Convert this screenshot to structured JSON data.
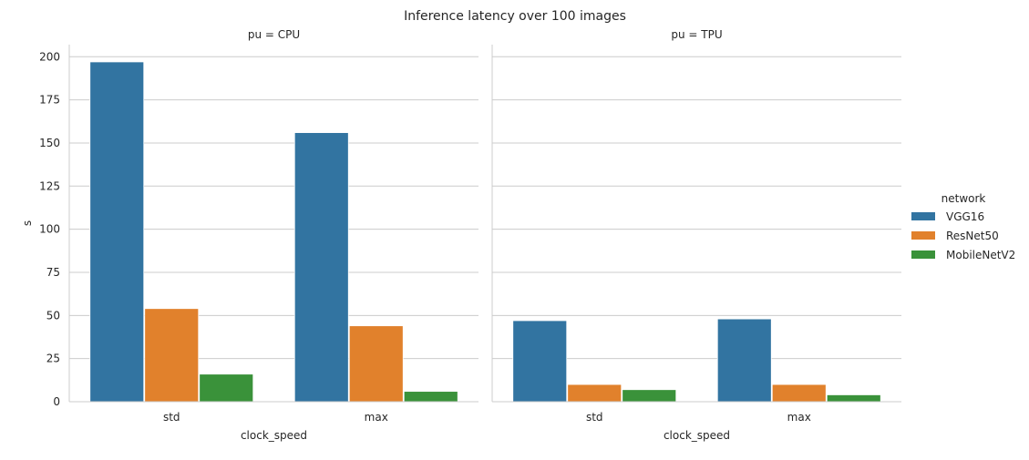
{
  "chart_data": {
    "type": "bar",
    "title": "Inference latency over 100 images",
    "xlabel": "clock_speed",
    "ylabel": "s",
    "ylim": [
      0,
      207
    ],
    "yticks": [
      0,
      25,
      50,
      75,
      100,
      125,
      150,
      175,
      200
    ],
    "grid": true,
    "legend": {
      "title": "network",
      "placement": "right",
      "entries": [
        "VGG16",
        "ResNet50",
        "MobileNetV2"
      ]
    },
    "colors": {
      "VGG16": "#3274a1",
      "ResNet50": "#e1812c",
      "MobileNetV2": "#3a923a"
    },
    "categories": [
      "std",
      "max"
    ],
    "facets": [
      {
        "title": "pu = CPU",
        "series": [
          {
            "name": "VGG16",
            "values": [
              197,
              156
            ]
          },
          {
            "name": "ResNet50",
            "values": [
              54,
              44
            ]
          },
          {
            "name": "MobileNetV2",
            "values": [
              16,
              6
            ]
          }
        ]
      },
      {
        "title": "pu = TPU",
        "series": [
          {
            "name": "VGG16",
            "values": [
              47,
              48
            ]
          },
          {
            "name": "ResNet50",
            "values": [
              10,
              10
            ]
          },
          {
            "name": "MobileNetV2",
            "values": [
              7,
              4
            ]
          }
        ]
      }
    ]
  }
}
